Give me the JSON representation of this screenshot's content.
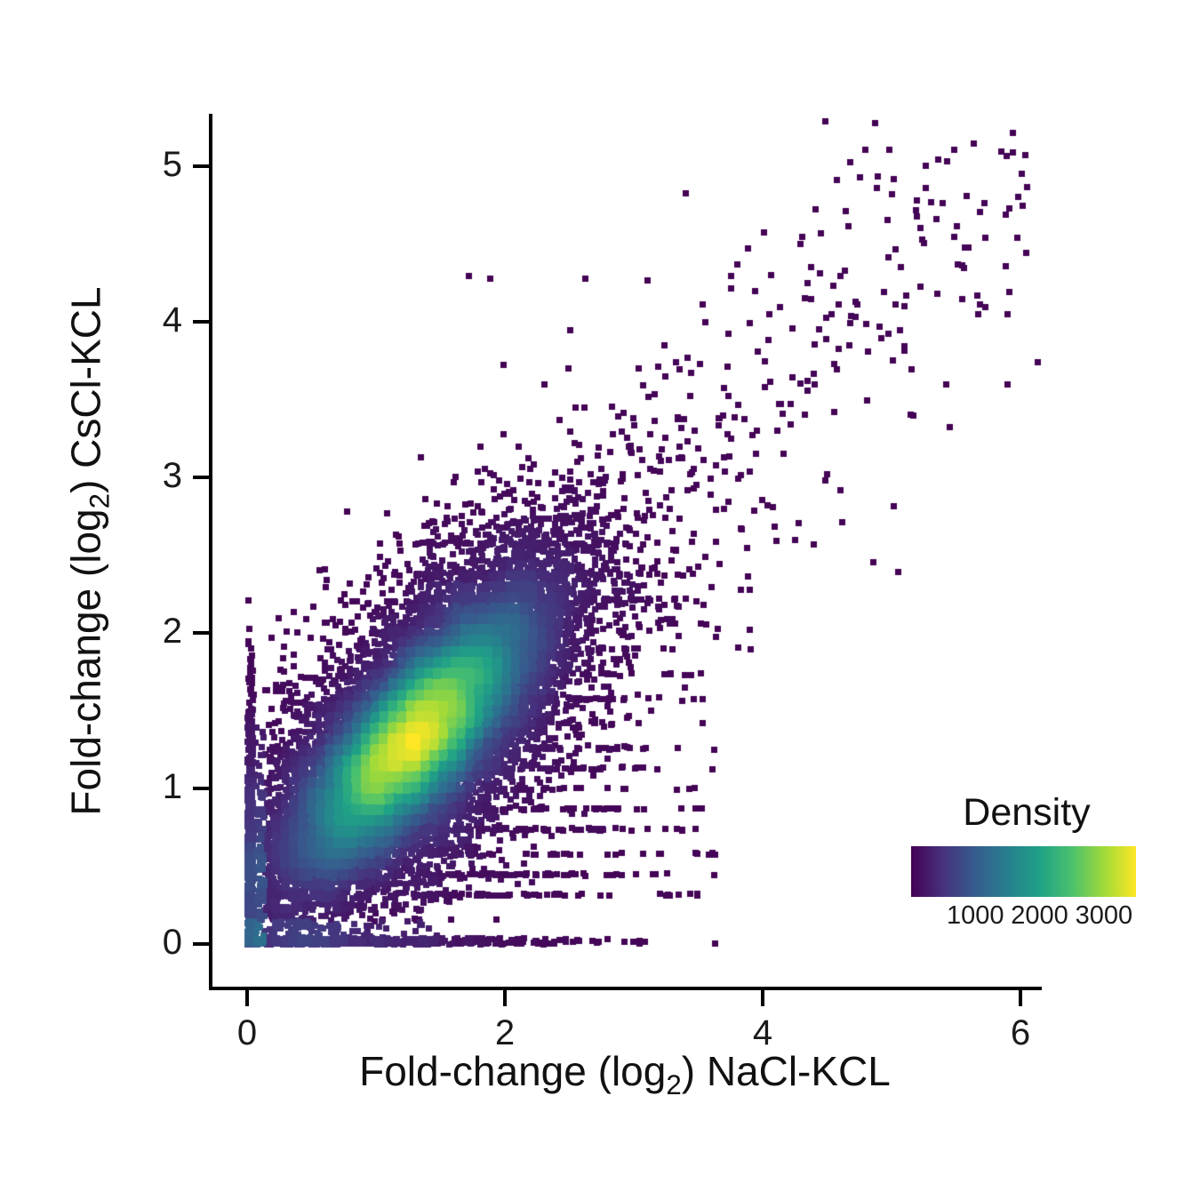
{
  "figure": {
    "background": "#ffffff",
    "axis_color": "#000000",
    "text_color": "#111111"
  },
  "chart_data": {
    "type": "scatter",
    "subtype": "density-scatter",
    "title": "",
    "xlabel": {
      "prefix": "Fold-change (log",
      "sub": "2",
      "suffix": ") NaCl-KCL"
    },
    "ylabel": {
      "prefix": "Fold-change (log",
      "sub": "2",
      "suffix": ") CsCl-KCL"
    },
    "xlim": [
      -0.1,
      6.3
    ],
    "ylim": [
      -0.15,
      5.35
    ],
    "x_ticks": [
      0,
      2,
      4,
      6
    ],
    "y_ticks": [
      0,
      1,
      2,
      3,
      4,
      5
    ],
    "grid": false,
    "legend": {
      "title": "Density",
      "position": "bottom-right",
      "ticks": [
        1000,
        2000,
        3000
      ],
      "vmin": 0,
      "vmax": 3500
    },
    "colormap": {
      "name": "viridis",
      "stops": [
        "#440154",
        "#46327e",
        "#365c8d",
        "#277f8e",
        "#1fa187",
        "#4ac16d",
        "#a0da39",
        "#fde725"
      ]
    },
    "density_model": {
      "marker": "square",
      "marker_px": 7,
      "seed": 1337,
      "components": [
        {
          "n": 15000,
          "cx": 1.3,
          "cy": 1.33,
          "sd_major": 0.6,
          "sd_minor": 0.21,
          "angle_deg": 42
        },
        {
          "n": 6000,
          "cx": 1.25,
          "cy": 1.3,
          "sd_major": 1.0,
          "sd_minor": 0.42,
          "angle_deg": 42
        }
      ],
      "diagonal_outliers": {
        "n": 420,
        "x0": 0.8,
        "y0": 0.7,
        "dx": 5.0,
        "dy": 4.2,
        "jx": 0.5,
        "jy": 0.45
      },
      "streak_rows": [
        0.32,
        0.45,
        0.58,
        0.74,
        0.87,
        1.0,
        1.13,
        1.26,
        1.42,
        1.58,
        1.74,
        1.9,
        2.06,
        2.22,
        2.38,
        2.58
      ],
      "streak_n": 900,
      "bottom_row_n": 500,
      "left_col_n": 350,
      "peak_density": 3500
    },
    "outlier_points": [
      [
        5.85,
        5.1
      ],
      [
        4.75,
        4.93
      ],
      [
        5.5,
        4.62
      ],
      [
        5.15,
        3.7
      ],
      [
        3.4,
        4.83
      ],
      [
        4.6,
        4.3
      ],
      [
        2.62,
        4.28
      ],
      [
        1.88,
        4.28
      ],
      [
        3.1,
        4.27
      ],
      [
        2.5,
        3.95
      ],
      [
        3.35,
        3.7
      ],
      [
        4.25,
        2.6
      ],
      [
        3.9,
        1.9
      ],
      [
        3.6,
        2.3
      ],
      [
        2.9,
        3.3
      ],
      [
        4.4,
        3.6
      ],
      [
        4.05,
        4.05
      ],
      [
        3.75,
        4.3
      ],
      [
        3.55,
        4.0
      ],
      [
        2.3,
        3.6
      ],
      [
        1.72,
        4.3
      ],
      [
        4.3,
        4.55
      ]
    ]
  }
}
